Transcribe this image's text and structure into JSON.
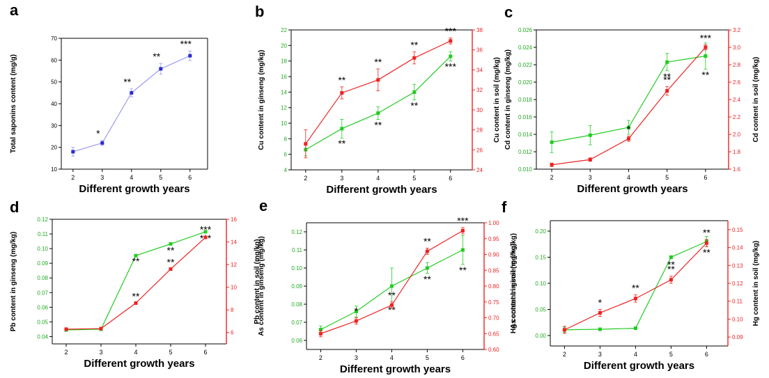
{
  "chart_data": [
    {
      "type": "line",
      "panel_label": "a",
      "xlabel": "Different growth years",
      "ylabel": "Total saponins content (mg/g)",
      "x": [
        2,
        3,
        4,
        5,
        6
      ],
      "xlim": [
        1.6,
        6.6
      ],
      "ylim": [
        10,
        70
      ],
      "yticks": [
        10,
        20,
        30,
        40,
        50,
        60,
        70
      ],
      "series": [
        {
          "axis": "left",
          "color": "#2a2ad0",
          "line_color": "#9a9af0",
          "values": [
            18,
            22,
            45,
            56,
            62
          ],
          "errors": [
            2,
            1.2,
            1.8,
            2.5,
            2.2
          ],
          "marks": [
            "",
            "*",
            "**",
            "**",
            "***"
          ]
        }
      ]
    },
    {
      "type": "line",
      "panel_label": "b",
      "xlabel": "Different growth years",
      "ylabel": "Cu content in ginseng (mg/kg)",
      "ylabel_right": "Cu content in soil (mg/kg)",
      "x": [
        2,
        3,
        4,
        5,
        6
      ],
      "xlim": [
        1.6,
        6.6
      ],
      "ylim": [
        4,
        22
      ],
      "yticks": [
        4,
        6,
        8,
        10,
        12,
        14,
        16,
        18,
        20,
        22
      ],
      "ylim_right": [
        24,
        38
      ],
      "yticks_right": [
        24,
        26,
        28,
        30,
        32,
        34,
        36,
        38
      ],
      "series": [
        {
          "axis": "left",
          "color": "#22cc22",
          "line_color": "#22cc22",
          "values": [
            6.6,
            9.3,
            11.3,
            14.0,
            18.6
          ],
          "errors": [
            0.8,
            1.2,
            0.8,
            1.0,
            0.6
          ],
          "marks": [
            "",
            "**",
            "**",
            "**",
            "***"
          ]
        },
        {
          "axis": "right",
          "color": "#ee2222",
          "line_color": "#ee2222",
          "values": [
            26.6,
            31.7,
            33.0,
            35.2,
            36.9
          ],
          "errors": [
            1.4,
            0.6,
            1.1,
            0.6,
            0.3
          ],
          "marks": [
            "",
            "**",
            "**",
            "**",
            "***"
          ]
        }
      ]
    },
    {
      "type": "line",
      "panel_label": "c",
      "xlabel": "Different growth years",
      "ylabel": "Cd content in ginseng (mg/kg)",
      "ylabel_right": "Cd content in soil (mg/kg)",
      "x": [
        2,
        3,
        4,
        5,
        6
      ],
      "xlim": [
        1.6,
        6.6
      ],
      "ylim": [
        0.01,
        0.026
      ],
      "yticks": [
        "0.010",
        "0.012",
        "0.014",
        "0.016",
        "0.018",
        "0.020",
        "0.022",
        "0.024",
        "0.026"
      ],
      "ylim_right": [
        1.6,
        3.2
      ],
      "yticks_right": [
        "1.6",
        "1.8",
        "2.0",
        "2.2",
        "2.4",
        "2.6",
        "2.8",
        "3.0",
        "3.2"
      ],
      "series": [
        {
          "axis": "left",
          "color": "#22cc22",
          "line_color": "#22cc22",
          "values": [
            0.0131,
            0.0139,
            0.0148,
            0.0223,
            0.023
          ],
          "errors": [
            0.0012,
            0.0011,
            0.0008,
            0.001,
            0.0015
          ],
          "marks": [
            "",
            "",
            "*",
            "**",
            "**"
          ]
        },
        {
          "axis": "right",
          "color": "#ee2222",
          "line_color": "#ee2222",
          "values": [
            1.65,
            1.71,
            1.95,
            2.5,
            3.0
          ],
          "errors": [
            0.02,
            0.02,
            0.03,
            0.05,
            0.03
          ],
          "marks": [
            "",
            "",
            "*",
            "**",
            "***"
          ]
        }
      ]
    },
    {
      "type": "line",
      "panel_label": "d",
      "xlabel": "Different growth years",
      "ylabel": "Pb content in ginseng (mg/kg)",
      "ylabel_right": "Pb content in soil (mg/kg)",
      "x": [
        2,
        3,
        4,
        5,
        6
      ],
      "xlim": [
        1.6,
        6.6
      ],
      "ylim": [
        0.035,
        0.12
      ],
      "yticks": [
        "0.04",
        "0.05",
        "0.06",
        "0.07",
        "0.08",
        "0.09",
        "0.10",
        "0.11",
        "0.12"
      ],
      "ylim_right": [
        5,
        16
      ],
      "yticks_right": [
        6,
        8,
        10,
        12,
        14,
        16
      ],
      "series": [
        {
          "axis": "left",
          "color": "#22cc22",
          "line_color": "#22cc22",
          "values": [
            0.0445,
            0.045,
            0.0952,
            0.1032,
            0.1115
          ],
          "errors": [
            0,
            0,
            0,
            0.0005,
            0.0005
          ],
          "marks": [
            "",
            "",
            "**",
            "**",
            "***"
          ]
        },
        {
          "axis": "right",
          "color": "#ee2222",
          "line_color": "#ee2222",
          "values": [
            6.3,
            6.35,
            8.6,
            11.6,
            14.4
          ],
          "errors": [
            0,
            0,
            0,
            0,
            0.1
          ],
          "marks": [
            "",
            "",
            "**",
            "**",
            "***"
          ]
        }
      ]
    },
    {
      "type": "line",
      "panel_label": "e",
      "xlabel": "Different growth years",
      "ylabel": "As content in ginseng (mg/kg)",
      "ylabel_right": "As content in soil (mg/kg)",
      "x": [
        2,
        3,
        4,
        5,
        6
      ],
      "xlim": [
        1.6,
        6.6
      ],
      "ylim": [
        0.055,
        0.125
      ],
      "yticks": [
        "0.06",
        "0.07",
        "0.08",
        "0.09",
        "0.10",
        "0.11",
        "0.12"
      ],
      "ylim_right": [
        0.6,
        1.0
      ],
      "yticks_right": [
        "0.60",
        "0.65",
        "0.70",
        "0.75",
        "0.80",
        "0.85",
        "0.90",
        "0.95",
        "1.00"
      ],
      "series": [
        {
          "axis": "left",
          "color": "#22cc22",
          "line_color": "#22cc22",
          "values": [
            0.066,
            0.076,
            0.09,
            0.1,
            0.11
          ],
          "errors": [
            0.002,
            0.003,
            0.01,
            0.003,
            0.008
          ],
          "marks": [
            "",
            "*",
            "**",
            "**",
            "**"
          ]
        },
        {
          "axis": "right",
          "color": "#ee2222",
          "line_color": "#ee2222",
          "values": [
            0.65,
            0.69,
            0.74,
            0.91,
            0.975
          ],
          "errors": [
            0.01,
            0.01,
            0.01,
            0.01,
            0.01
          ],
          "marks": [
            "",
            "*",
            "**",
            "**",
            "***"
          ]
        }
      ]
    },
    {
      "type": "line",
      "panel_label": "f",
      "xlabel": "Different growth years",
      "ylabel": "Hg content in ginseng (mg/kg)",
      "ylabel_right": "Hg content in soil (mg/kg)",
      "x": [
        2,
        3,
        4,
        5,
        6
      ],
      "xlim": [
        1.6,
        6.6
      ],
      "ylim": [
        -0.02,
        0.22
      ],
      "yticks": [
        "0.00",
        "0.05",
        "0.10",
        "0.15",
        "0.20"
      ],
      "ylim_right": [
        0.085,
        0.155
      ],
      "yticks_right": [
        "0.09",
        "0.10",
        "0.11",
        "0.12",
        "0.13",
        "0.14",
        "0.15"
      ],
      "series": [
        {
          "axis": "left",
          "color": "#22cc22",
          "line_color": "#22cc22",
          "values": [
            0.011,
            0.012,
            0.014,
            0.15,
            0.18
          ],
          "errors": [
            0.005,
            0.002,
            0.002,
            0.003,
            0.01
          ],
          "marks": [
            "",
            "",
            "",
            "**",
            "**"
          ]
        },
        {
          "axis": "right",
          "color": "#ee2222",
          "line_color": "#ee2222",
          "values": [
            0.094,
            0.1035,
            0.1115,
            0.122,
            0.1425
          ],
          "errors": [
            0.002,
            0.002,
            0.002,
            0.002,
            0.002
          ],
          "marks": [
            "",
            "*",
            "**",
            "**",
            "**"
          ]
        }
      ]
    }
  ]
}
